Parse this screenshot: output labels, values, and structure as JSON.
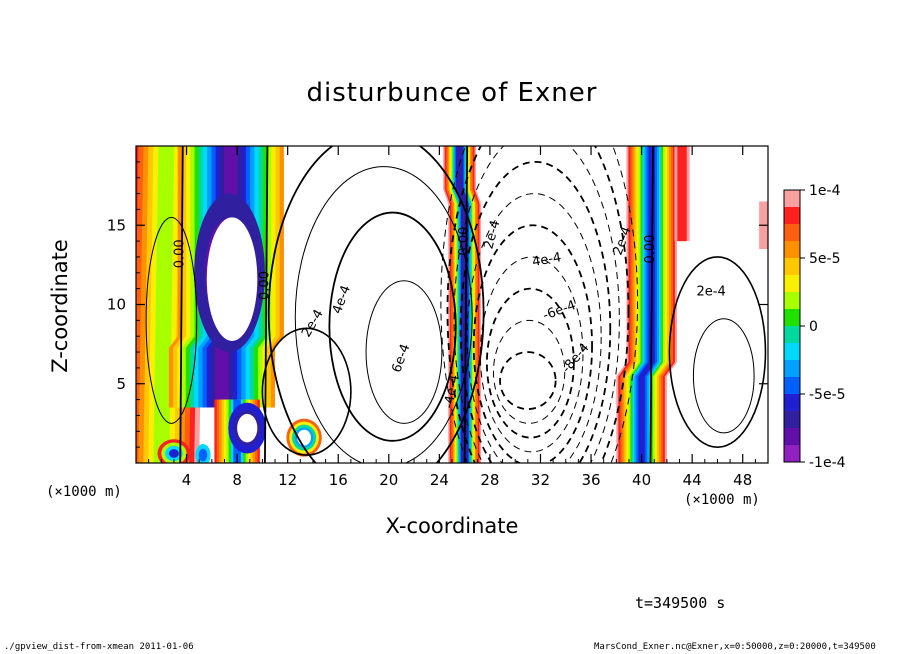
{
  "chart_data": {
    "type": "contour",
    "title": "disturbunce of Exner",
    "xlabel": "X-coordinate",
    "ylabel": "Z-coordinate",
    "x_unit": "(×1000 m)",
    "x_unit_right": "(×1000 m)",
    "xlim": [
      0,
      50
    ],
    "ylim": [
      0,
      20
    ],
    "x_ticks": [
      "4",
      "8",
      "12",
      "16",
      "20",
      "24",
      "28",
      "32",
      "36",
      "40",
      "44",
      "48"
    ],
    "y_ticks": [
      "5",
      "10",
      "15"
    ],
    "colorbar": {
      "range": [
        -0.0001,
        0.0001
      ],
      "labels": [
        "1e-4",
        "5e-5",
        "0",
        "-5e-5",
        "-1e-4"
      ],
      "colors": [
        "#f8a0a0",
        "#ff2020",
        "#ff6010",
        "#ff9000",
        "#ffc800",
        "#f8f000",
        "#a8ff00",
        "#20e000",
        "#00d8a0",
        "#00d8ff",
        "#00a0ff",
        "#0060ff",
        "#2020d0",
        "#3020a0",
        "#6010a8",
        "#9020c0"
      ]
    },
    "contour_labels": [
      "0.00",
      "0.00",
      "0.00",
      "0.00",
      "2e-4",
      "4e-4",
      "6e-4",
      "2e-4",
      "4e-4",
      "2e-4",
      "-4e-4",
      "-6e-4",
      "-8e-4",
      "2e-4"
    ],
    "minimum_region_center": [
      31,
      5.2
    ],
    "time": "t=349500 s"
  },
  "footer": {
    "left": "./gpview_dist-from-xmean  2011-01-06",
    "right": "MarsCond_Exner.nc@Exner,x=0:50000,z=0:20000,t=349500"
  }
}
